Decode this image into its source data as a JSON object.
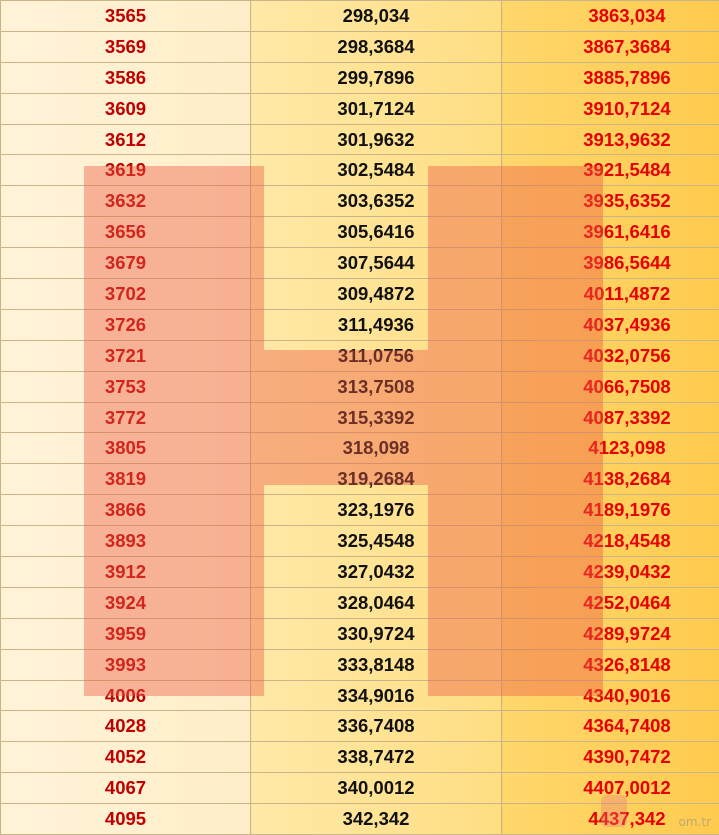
{
  "table": {
    "rows": [
      [
        "3565",
        "298,034",
        "3863,034"
      ],
      [
        "3569",
        "298,3684",
        "3867,3684"
      ],
      [
        "3586",
        "299,7896",
        "3885,7896"
      ],
      [
        "3609",
        "301,7124",
        "3910,7124"
      ],
      [
        "3612",
        "301,9632",
        "3913,9632"
      ],
      [
        "3619",
        "302,5484",
        "3921,5484"
      ],
      [
        "3632",
        "303,6352",
        "3935,6352"
      ],
      [
        "3656",
        "305,6416",
        "3961,6416"
      ],
      [
        "3679",
        "307,5644",
        "3986,5644"
      ],
      [
        "3702",
        "309,4872",
        "4011,4872"
      ],
      [
        "3726",
        "311,4936",
        "4037,4936"
      ],
      [
        "3721",
        "311,0756",
        "4032,0756"
      ],
      [
        "3753",
        "313,7508",
        "4066,7508"
      ],
      [
        "3772",
        "315,3392",
        "4087,3392"
      ],
      [
        "3805",
        "318,098",
        "4123,098"
      ],
      [
        "3819",
        "319,2684",
        "4138,2684"
      ],
      [
        "3866",
        "323,1976",
        "4189,1976"
      ],
      [
        "3893",
        "325,4548",
        "4218,4548"
      ],
      [
        "3912",
        "327,0432",
        "4239,0432"
      ],
      [
        "3924",
        "328,0464",
        "4252,0464"
      ],
      [
        "3959",
        "330,9724",
        "4289,9724"
      ],
      [
        "3993",
        "333,8148",
        "4326,8148"
      ],
      [
        "4006",
        "334,9016",
        "4340,9016"
      ],
      [
        "4028",
        "336,7408",
        "4364,7408"
      ],
      [
        "4052",
        "338,7472",
        "4390,7472"
      ],
      [
        "4067",
        "340,0012",
        "4407,0012"
      ],
      [
        "4095",
        "342,342",
        "4437,342"
      ]
    ]
  },
  "watermark": {
    "logo_text": "om.tr"
  },
  "colors": {
    "col1_text": "#c00000",
    "col2_text": "#111111",
    "col3_text": "#e60000",
    "watermark": "#ec5a46"
  }
}
